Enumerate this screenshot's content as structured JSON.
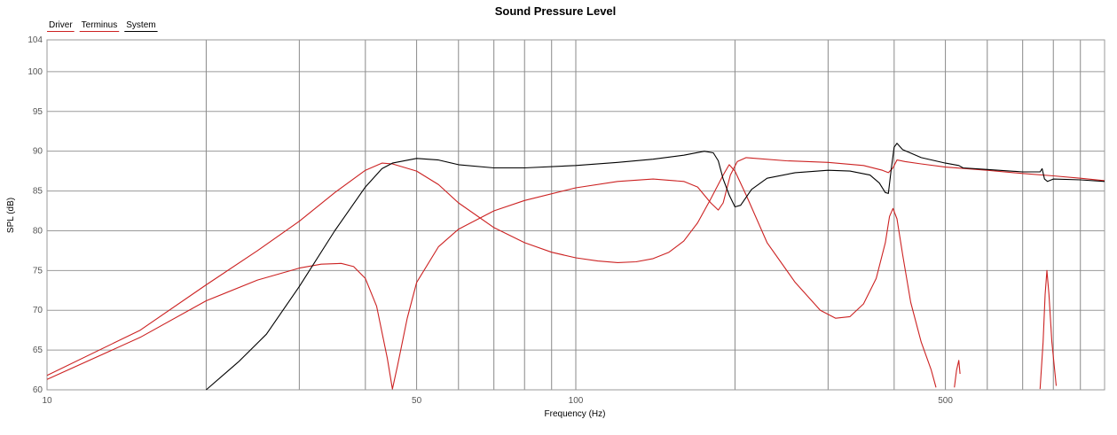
{
  "chart_data": {
    "type": "line",
    "title": "Sound Pressure Level",
    "xlabel": "Frequency (Hz)",
    "ylabel": "SPL (dB)",
    "xscale": "log",
    "xlim": [
      10,
      1000
    ],
    "ylim": [
      60,
      104
    ],
    "x_tick_labels": [
      {
        "value": 10,
        "label": "10"
      },
      {
        "value": 50,
        "label": "50"
      },
      {
        "value": 100,
        "label": "100"
      },
      {
        "value": 500,
        "label": "500"
      }
    ],
    "x_gridlines": [
      20,
      30,
      40,
      50,
      60,
      70,
      80,
      90,
      100,
      200,
      300,
      400,
      500,
      600,
      700,
      800,
      900
    ],
    "y_ticks": [
      60,
      65,
      70,
      75,
      80,
      85,
      90,
      95,
      100,
      104
    ],
    "grid": true,
    "legend_position": "top-left",
    "series": [
      {
        "name": "Driver",
        "color": "#cc2222",
        "points": [
          [
            10,
            61.8
          ],
          [
            15,
            67.5
          ],
          [
            20,
            73.2
          ],
          [
            25,
            77.5
          ],
          [
            30,
            81.2
          ],
          [
            35,
            84.8
          ],
          [
            40,
            87.6
          ],
          [
            43,
            88.5
          ],
          [
            45,
            88.4
          ],
          [
            50,
            87.5
          ],
          [
            55,
            85.8
          ],
          [
            60,
            83.5
          ],
          [
            70,
            80.4
          ],
          [
            80,
            78.5
          ],
          [
            90,
            77.3
          ],
          [
            100,
            76.6
          ],
          [
            110,
            76.2
          ],
          [
            120,
            76.0
          ],
          [
            130,
            76.1
          ],
          [
            140,
            76.5
          ],
          [
            150,
            77.3
          ],
          [
            160,
            78.7
          ],
          [
            170,
            81.0
          ],
          [
            180,
            84.0
          ],
          [
            190,
            87.0
          ],
          [
            195,
            88.3
          ],
          [
            200,
            87.5
          ],
          [
            210,
            84.5
          ],
          [
            230,
            78.5
          ],
          [
            260,
            73.5
          ],
          [
            290,
            70.0
          ],
          [
            310,
            69.0
          ],
          [
            330,
            69.2
          ],
          [
            350,
            70.8
          ],
          [
            370,
            74.0
          ],
          [
            385,
            78.5
          ],
          [
            392,
            81.8
          ],
          [
            398,
            82.8
          ],
          [
            405,
            81.5
          ],
          [
            415,
            77.0
          ],
          [
            430,
            71.0
          ],
          [
            450,
            66.0
          ],
          [
            470,
            62.5
          ],
          [
            480,
            60.3
          ]
        ]
      },
      {
        "name": "Terminus",
        "color": "#cc2222",
        "points": [
          [
            10,
            61.3
          ],
          [
            15,
            66.6
          ],
          [
            20,
            71.2
          ],
          [
            25,
            73.8
          ],
          [
            30,
            75.3
          ],
          [
            33,
            75.8
          ],
          [
            36,
            75.9
          ],
          [
            38,
            75.5
          ],
          [
            40,
            74.0
          ],
          [
            42,
            70.5
          ],
          [
            44,
            64.0
          ],
          [
            45,
            60.1
          ],
          [
            46,
            63.0
          ],
          [
            48,
            69.0
          ],
          [
            50,
            73.5
          ],
          [
            55,
            78.0
          ],
          [
            60,
            80.2
          ],
          [
            70,
            82.5
          ],
          [
            80,
            83.8
          ],
          [
            100,
            85.4
          ],
          [
            120,
            86.2
          ],
          [
            140,
            86.5
          ],
          [
            160,
            86.2
          ],
          [
            170,
            85.5
          ],
          [
            180,
            83.5
          ],
          [
            186,
            82.6
          ],
          [
            190,
            83.5
          ],
          [
            196,
            87.0
          ],
          [
            202,
            88.7
          ],
          [
            210,
            89.2
          ],
          [
            250,
            88.8
          ],
          [
            300,
            88.6
          ],
          [
            350,
            88.2
          ],
          [
            380,
            87.6
          ],
          [
            390,
            87.3
          ],
          [
            398,
            87.9
          ],
          [
            405,
            88.9
          ],
          [
            420,
            88.7
          ],
          [
            450,
            88.4
          ],
          [
            500,
            88.0
          ],
          [
            600,
            87.6
          ],
          [
            700,
            87.2
          ],
          [
            800,
            86.9
          ],
          [
            900,
            86.6
          ],
          [
            1000,
            86.3
          ]
        ]
      },
      {
        "name": "System",
        "color": "#000000",
        "points": [
          [
            20,
            60.0
          ],
          [
            23,
            63.5
          ],
          [
            26,
            67.0
          ],
          [
            30,
            73.0
          ],
          [
            35,
            80.0
          ],
          [
            40,
            85.5
          ],
          [
            43,
            87.8
          ],
          [
            45,
            88.5
          ],
          [
            50,
            89.1
          ],
          [
            55,
            88.9
          ],
          [
            60,
            88.3
          ],
          [
            70,
            87.9
          ],
          [
            80,
            87.9
          ],
          [
            100,
            88.2
          ],
          [
            120,
            88.6
          ],
          [
            140,
            89.0
          ],
          [
            160,
            89.5
          ],
          [
            175,
            90.0
          ],
          [
            182,
            89.8
          ],
          [
            186,
            88.8
          ],
          [
            190,
            86.5
          ],
          [
            195,
            84.5
          ],
          [
            200,
            83.0
          ],
          [
            205,
            83.2
          ],
          [
            215,
            85.2
          ],
          [
            230,
            86.6
          ],
          [
            260,
            87.3
          ],
          [
            300,
            87.6
          ],
          [
            330,
            87.5
          ],
          [
            360,
            87.0
          ],
          [
            375,
            86.0
          ],
          [
            385,
            84.8
          ],
          [
            390,
            84.7
          ],
          [
            395,
            87.8
          ],
          [
            400,
            90.5
          ],
          [
            405,
            91.0
          ],
          [
            415,
            90.2
          ],
          [
            450,
            89.2
          ],
          [
            500,
            88.5
          ],
          [
            530,
            88.2
          ],
          [
            540,
            87.9
          ],
          [
            600,
            87.7
          ],
          [
            700,
            87.4
          ],
          [
            755,
            87.4
          ],
          [
            762,
            87.8
          ],
          [
            770,
            86.5
          ],
          [
            780,
            86.2
          ],
          [
            800,
            86.5
          ],
          [
            900,
            86.4
          ],
          [
            1000,
            86.2
          ]
        ]
      }
    ],
    "annotations": [
      {
        "series": "Terminus",
        "points": [
          [
            520,
            60.3
          ],
          [
            525,
            62.5
          ],
          [
            530,
            63.7
          ],
          [
            533,
            62.0
          ]
        ]
      },
      {
        "series": "Terminus",
        "points": [
          [
            755,
            60.1
          ],
          [
            765,
            66.0
          ],
          [
            772,
            72.0
          ],
          [
            778,
            75.0
          ],
          [
            785,
            72.0
          ],
          [
            795,
            66.0
          ],
          [
            810,
            60.5
          ]
        ]
      }
    ]
  }
}
